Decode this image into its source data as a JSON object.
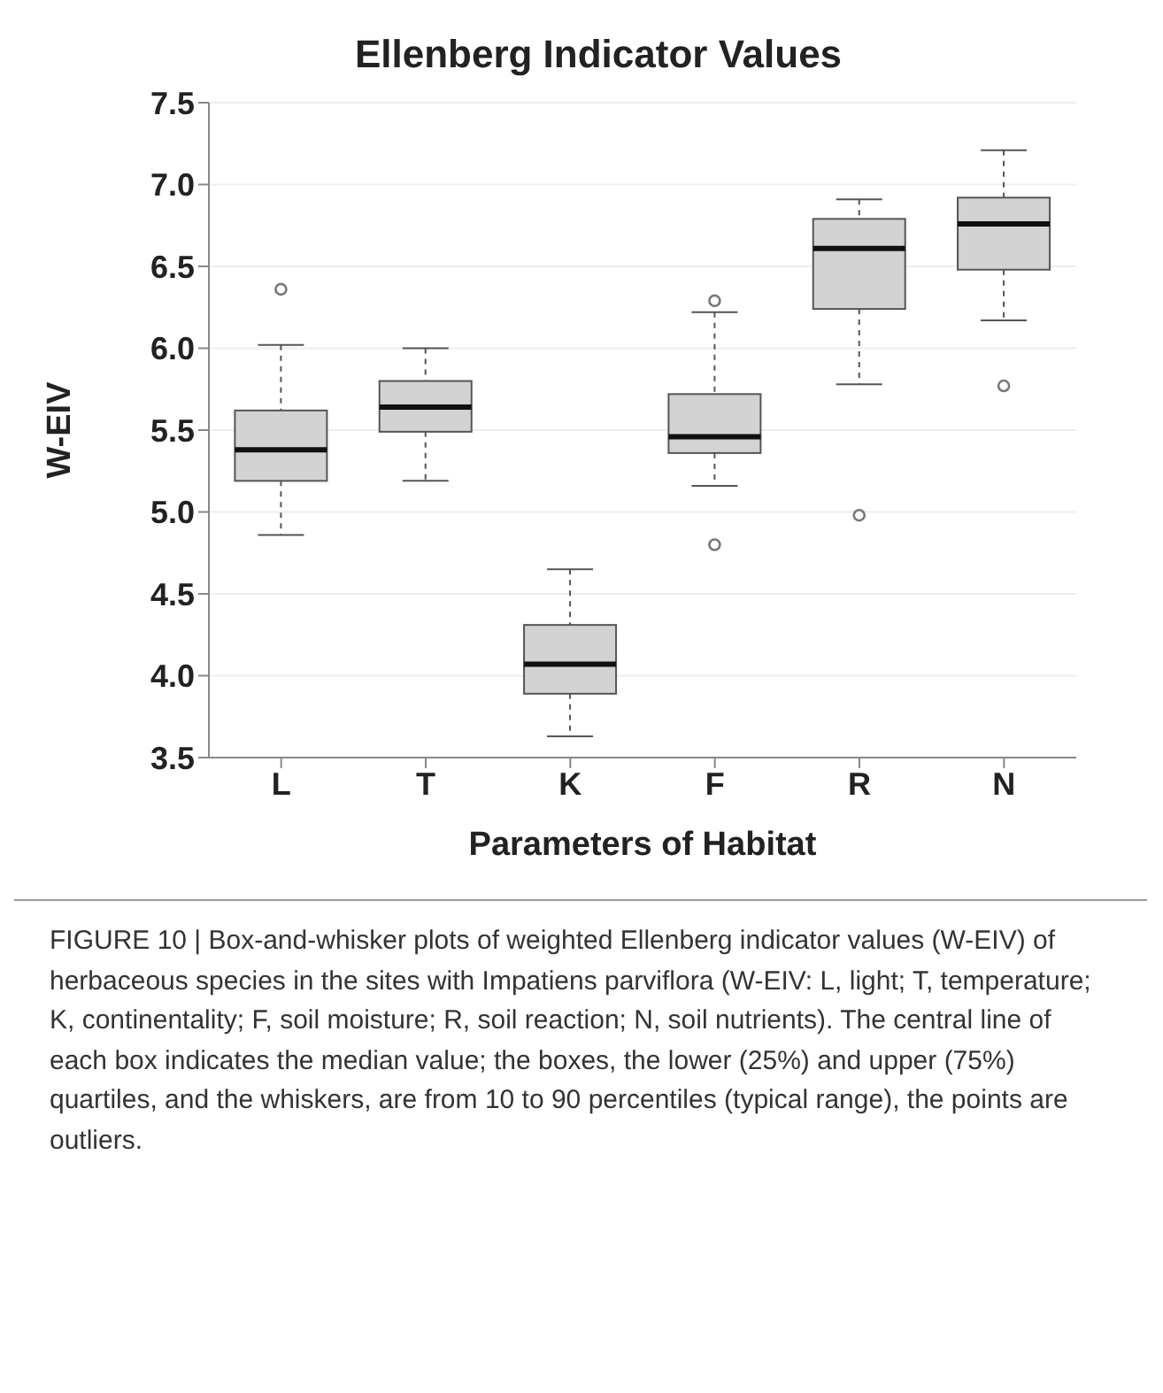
{
  "chart_data": {
    "type": "box",
    "title": "Ellenberg Indicator Values",
    "xlabel": "Parameters of Habitat",
    "ylabel": "W-EIV",
    "categories": [
      "L",
      "T",
      "K",
      "F",
      "R",
      "N"
    ],
    "boxes": [
      {
        "low": 4.86,
        "q1": 5.19,
        "median": 5.38,
        "q3": 5.62,
        "high": 6.02,
        "outliers": [
          6.36
        ]
      },
      {
        "low": 5.19,
        "q1": 5.49,
        "median": 5.64,
        "q3": 5.8,
        "high": 6.0
      },
      {
        "low": 3.63,
        "q1": 3.89,
        "median": 4.07,
        "q3": 4.31,
        "high": 4.65
      },
      {
        "low": 5.16,
        "q1": 5.36,
        "median": 5.46,
        "q3": 5.72,
        "high": 6.22,
        "outliers": [
          6.29,
          4.8
        ]
      },
      {
        "low": 5.78,
        "q1": 6.24,
        "median": 6.61,
        "q3": 6.79,
        "high": 6.91,
        "outliers": [
          4.98
        ]
      },
      {
        "low": 6.17,
        "q1": 6.48,
        "median": 6.76,
        "q3": 6.92,
        "high": 7.21,
        "outliers": [
          5.77
        ]
      }
    ],
    "ylim": [
      3.5,
      7.5
    ],
    "yticks": [
      3.5,
      {
        "value": 4,
        "label": "4.0"
      },
      4.5,
      {
        "value": 5,
        "label": "5.0"
      },
      5.5,
      {
        "value": 6,
        "label": "6.0"
      },
      6.5,
      {
        "value": 7,
        "label": "7.0"
      },
      7.5
    ],
    "grid": "y",
    "annotations": [
      "FIGURE 10 | Box-and-whisker plots of weighted Ellenberg indicator values (W-EIV) of herbaceous species in the sites with Impatiens parviflora (W-EIV: L, light; T, temperature; K, continentality; F, soil moisture; R, soil reaction; N, soil nutrients). The central line of each box indicates the median value; the boxes, the lower (25%) and upper (75%) quartiles, and the whiskers, are from 10 to 90 percentiles (typical range), the points are outliers."
    ]
  }
}
